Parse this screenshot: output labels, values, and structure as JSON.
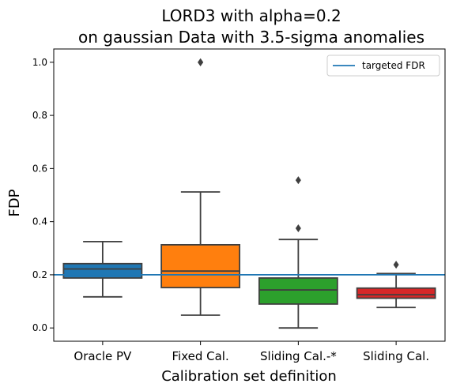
{
  "chart_data": {
    "type": "box",
    "title": "LORD3 with alpha=0.2",
    "subtitle": "on gaussian Data with 3.5-sigma anomalies",
    "xlabel": "Calibration set definition",
    "ylabel": "FDP",
    "ylim": [
      -0.05,
      1.05
    ],
    "yticks": [
      "0.0",
      "0.2",
      "0.4",
      "0.6",
      "0.8",
      "1.0"
    ],
    "grid": false,
    "legend": {
      "placement": "top-right",
      "entries": [
        "targeted FDR"
      ]
    },
    "reference_line": {
      "name": "targeted FDR",
      "value": 0.2,
      "color": "#1f77b4"
    },
    "categories": [
      "Oracle PV",
      "Fixed Cal.",
      "Sliding Cal.-*",
      "Sliding Cal."
    ],
    "boxes": [
      {
        "whisker_low": 0.117,
        "q1": 0.188,
        "median": 0.222,
        "q3": 0.242,
        "whisker_high": 0.325,
        "outliers": [],
        "color": "#1f77b4"
      },
      {
        "whisker_low": 0.048,
        "q1": 0.152,
        "median": 0.214,
        "q3": 0.313,
        "whisker_high": 0.512,
        "outliers": [
          1.0,
          1.0
        ],
        "color": "#ff7f0e"
      },
      {
        "whisker_low": 0.0,
        "q1": 0.09,
        "median": 0.143,
        "q3": 0.188,
        "whisker_high": 0.333,
        "outliers": [
          0.375,
          0.556
        ],
        "color": "#2ca02c"
      },
      {
        "whisker_low": 0.077,
        "q1": 0.112,
        "median": 0.125,
        "q3": 0.15,
        "whisker_high": 0.205,
        "outliers": [
          0.238
        ],
        "color": "#d62728"
      }
    ]
  }
}
